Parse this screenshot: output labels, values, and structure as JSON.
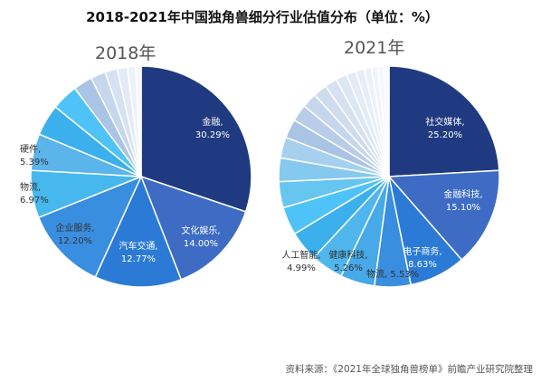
{
  "title": "2018-2021年中国独角兽细分行业估值分布（单位：%）",
  "source": "资料来源：《2021年全球独角兽榜单》前瞻产业研究院整理",
  "chart_data": [
    {
      "type": "pie",
      "title": "2018年",
      "slices": [
        {
          "label": "金融",
          "value": 30.29,
          "color": "#1f3a80",
          "text": "#ffffff",
          "display": "金融,\n30.29%"
        },
        {
          "label": "文化娱乐",
          "value": 14.0,
          "color": "#3e6cc4",
          "text": "#ffffff",
          "display": "文化娱乐,\n14.00%"
        },
        {
          "label": "汽车交通",
          "value": 12.77,
          "color": "#2b7bd6",
          "text": "#ffffff",
          "display": "汽车交通,\n12.77%"
        },
        {
          "label": "企业服务",
          "value": 12.2,
          "color": "#3a8ee0",
          "text": "#333333",
          "display": "企业服务,\n12.20%"
        },
        {
          "label": "物流",
          "value": 6.97,
          "color": "#46b8ee",
          "text": "#333333",
          "display": "物流,\n6.97%"
        },
        {
          "label": "硬件",
          "value": 5.39,
          "color": "#5bb4ea",
          "text": "#333333",
          "display": "硬件,\n5.39%"
        },
        {
          "label": "",
          "value": 4.6,
          "color": "#3bb0ec",
          "text": "",
          "display": ""
        },
        {
          "label": "",
          "value": 3.9,
          "color": "#4fc3f7",
          "text": "",
          "display": ""
        },
        {
          "label": "",
          "value": 2.8,
          "color": "#a9c4e4",
          "text": "",
          "display": ""
        },
        {
          "label": "",
          "value": 2.2,
          "color": "#c6d6ec",
          "text": "",
          "display": ""
        },
        {
          "label": "",
          "value": 1.8,
          "color": "#d6e2f2",
          "text": "",
          "display": ""
        },
        {
          "label": "",
          "value": 1.5,
          "color": "#e3ebf6",
          "text": "",
          "display": ""
        },
        {
          "label": "",
          "value": 1.2,
          "color": "#edf2fa",
          "text": "",
          "display": ""
        },
        {
          "label": "",
          "value": 0.81,
          "color": "#f4f7fc",
          "text": "",
          "display": ""
        }
      ]
    },
    {
      "type": "pie",
      "title": "2021年",
      "slices": [
        {
          "label": "社交媒体",
          "value": 25.2,
          "color": "#1f3a80",
          "text": "#ffffff",
          "display": "社交媒体,\n25.20%"
        },
        {
          "label": "金融科技",
          "value": 15.1,
          "color": "#3e6cc4",
          "text": "#ffffff",
          "display": "金融科技,\n15.10%"
        },
        {
          "label": "电子商务",
          "value": 8.63,
          "color": "#2b7bd6",
          "text": "#ffffff",
          "display": "电子商务,\n8.63%"
        },
        {
          "label": "物流",
          "value": 5.53,
          "color": "#3a8ee0",
          "text": "#333333",
          "display": "物流, 5.53%"
        },
        {
          "label": "健康科技",
          "value": 5.26,
          "color": "#46a9e8",
          "text": "#333333",
          "display": "健康科技,\n5.26%"
        },
        {
          "label": "人工智能",
          "value": 4.99,
          "color": "#4fb6ee",
          "text": "#333333",
          "display": "人工智能,\n4.99%"
        },
        {
          "label": "",
          "value": 4.6,
          "color": "#3bb0ec",
          "text": "",
          "display": ""
        },
        {
          "label": "",
          "value": 4.3,
          "color": "#4fc3f7",
          "text": "",
          "display": ""
        },
        {
          "label": "",
          "value": 4.0,
          "color": "#67c6f0",
          "text": "",
          "display": ""
        },
        {
          "label": "",
          "value": 3.6,
          "color": "#86c9ee",
          "text": "",
          "display": ""
        },
        {
          "label": "",
          "value": 3.2,
          "color": "#a6d1ee",
          "text": "",
          "display": ""
        },
        {
          "label": "",
          "value": 2.9,
          "color": "#a9c4e4",
          "text": "",
          "display": ""
        },
        {
          "label": "",
          "value": 2.6,
          "color": "#b9cde9",
          "text": "",
          "display": ""
        },
        {
          "label": "",
          "value": 2.3,
          "color": "#c6d6ec",
          "text": "",
          "display": ""
        },
        {
          "label": "",
          "value": 2.1,
          "color": "#d0dcee",
          "text": "",
          "display": ""
        },
        {
          "label": "",
          "value": 1.9,
          "color": "#d6e2f2",
          "text": "",
          "display": ""
        },
        {
          "label": "",
          "value": 1.7,
          "color": "#dde6f3",
          "text": "",
          "display": ""
        },
        {
          "label": "",
          "value": 1.5,
          "color": "#e3ebf6",
          "text": "",
          "display": ""
        },
        {
          "label": "",
          "value": 1.3,
          "color": "#e8eef8",
          "text": "",
          "display": ""
        },
        {
          "label": "",
          "value": 1.1,
          "color": "#edf2fa",
          "text": "",
          "display": ""
        },
        {
          "label": "",
          "value": 1.0,
          "color": "#f1f5fb",
          "text": "",
          "display": ""
        },
        {
          "label": "",
          "value": 0.9,
          "color": "#f4f7fc",
          "text": "",
          "display": ""
        },
        {
          "label": "",
          "value": 0.79,
          "color": "#f7f9fd",
          "text": "",
          "display": ""
        }
      ]
    }
  ]
}
